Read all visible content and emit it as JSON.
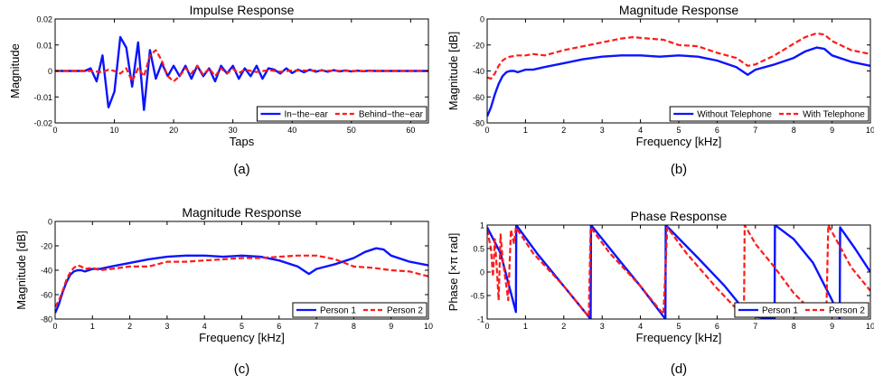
{
  "colors": {
    "series1": "#0a14ff",
    "series2": "#ff1a1a",
    "axis": "#000000",
    "background": "#ffffff"
  },
  "chart_data": [
    {
      "type": "line",
      "caption": "(a)",
      "title": "Impulse Response",
      "xlabel": "Taps",
      "ylabel": "Magnitude",
      "xlim": [
        0,
        63
      ],
      "ylim": [
        -0.02,
        0.02
      ],
      "xticks": [
        0,
        10,
        20,
        30,
        40,
        50,
        60
      ],
      "yticks": [
        -0.02,
        -0.01,
        0,
        0.01,
        0.02
      ],
      "xtick_labels": [
        "0",
        "10",
        "20",
        "30",
        "40",
        "50",
        "60"
      ],
      "ytick_labels": [
        "-0.02",
        "-0.01",
        "0",
        "0.01",
        "0.02"
      ],
      "legend_position": "bottom-right",
      "series": [
        {
          "name": "In−the−ear",
          "style": "solid",
          "x": [
            0,
            1,
            2,
            3,
            4,
            5,
            6,
            7,
            8,
            9,
            10,
            11,
            12,
            13,
            14,
            15,
            16,
            17,
            18,
            19,
            20,
            21,
            22,
            23,
            24,
            25,
            26,
            27,
            28,
            29,
            30,
            31,
            32,
            33,
            34,
            35,
            36,
            37,
            38,
            39,
            40,
            41,
            42,
            43,
            44,
            45,
            46,
            47,
            48,
            49,
            50,
            51,
            52,
            53,
            54,
            55,
            56,
            57,
            58,
            59,
            60,
            61,
            62,
            63
          ],
          "y": [
            0,
            0,
            0,
            0,
            0,
            0,
            0.001,
            -0.004,
            0.006,
            -0.014,
            -0.008,
            0.013,
            0.009,
            -0.006,
            0.011,
            -0.015,
            0.008,
            -0.003,
            0.003,
            -0.002,
            0.002,
            -0.002,
            0.002,
            -0.003,
            0.002,
            -0.002,
            0.001,
            -0.004,
            0.002,
            -0.001,
            0.002,
            -0.003,
            0.001,
            -0.002,
            0.002,
            -0.003,
            0.001,
            0.0005,
            -0.001,
            0.001,
            -0.0008,
            0.0005,
            -0.0005,
            0.0005,
            -0.0003,
            0.0003,
            -0.0003,
            0.0003,
            -0.0002,
            0.0002,
            -0.0002,
            0.0001,
            -0.0001,
            0.0001,
            0,
            0,
            0,
            0,
            0,
            0,
            0,
            0,
            0,
            0
          ]
        },
        {
          "name": "Behind−the−ear",
          "style": "dashed",
          "x": [
            0,
            2,
            4,
            6,
            8,
            9,
            10,
            11,
            12,
            13,
            14,
            15,
            16,
            17,
            18,
            19,
            20,
            21,
            22,
            23,
            24,
            25,
            26,
            27,
            28,
            29,
            30,
            31,
            32,
            34,
            36,
            38,
            40,
            45,
            50,
            55,
            60,
            63
          ],
          "y": [
            0,
            0,
            0,
            0,
            -0.0005,
            0.0005,
            0,
            -0.001,
            0.001,
            -0.004,
            0.001,
            -0.002,
            0.006,
            0.008,
            0.004,
            -0.002,
            -0.004,
            -0.002,
            0.001,
            -0.001,
            0.002,
            -0.0015,
            0.001,
            -0.002,
            0.001,
            -0.001,
            0.0008,
            -0.0008,
            0.0005,
            -0.0004,
            0.0003,
            -0.0003,
            0.0002,
            0.0001,
            0,
            0,
            0,
            0
          ]
        }
      ]
    },
    {
      "type": "line",
      "caption": "(b)",
      "title": "Magnitude Response",
      "xlabel": "Frequency [kHz]",
      "ylabel": "Magnitude [dB]",
      "xlim": [
        0,
        10
      ],
      "ylim": [
        -80,
        0
      ],
      "xticks": [
        0,
        1,
        2,
        3,
        4,
        5,
        6,
        7,
        8,
        9,
        10
      ],
      "yticks": [
        -80,
        -60,
        -40,
        -20,
        0
      ],
      "xtick_labels": [
        "0",
        "1",
        "2",
        "3",
        "4",
        "5",
        "6",
        "7",
        "8",
        "9",
        "10"
      ],
      "ytick_labels": [
        "-80",
        "-60",
        "-40",
        "-20",
        "0"
      ],
      "legend_position": "bottom-right",
      "series": [
        {
          "name": "Without Telephone",
          "style": "solid",
          "x": [
            0,
            0.1,
            0.2,
            0.3,
            0.4,
            0.5,
            0.6,
            0.7,
            0.8,
            1.0,
            1.2,
            1.5,
            2.0,
            2.5,
            3.0,
            3.5,
            4.0,
            4.5,
            5.0,
            5.5,
            6.0,
            6.5,
            6.8,
            7.0,
            7.5,
            8.0,
            8.3,
            8.6,
            8.8,
            9.0,
            9.5,
            10.0
          ],
          "y": [
            -75,
            -68,
            -58,
            -50,
            -44,
            -41,
            -40,
            -40,
            -41,
            -39,
            -39,
            -37,
            -34,
            -31,
            -29,
            -28,
            -28,
            -29,
            -28,
            -29,
            -32,
            -37,
            -43,
            -39,
            -35,
            -30,
            -25,
            -22,
            -23,
            -28,
            -33,
            -36
          ]
        },
        {
          "name": "With Telephone",
          "style": "dashed",
          "x": [
            0,
            0.1,
            0.2,
            0.3,
            0.4,
            0.5,
            0.6,
            0.8,
            1.0,
            1.2,
            1.5,
            2.0,
            2.5,
            3.0,
            3.5,
            3.8,
            4.2,
            4.6,
            5.0,
            5.5,
            6.0,
            6.5,
            6.8,
            7.0,
            7.5,
            8.0,
            8.3,
            8.6,
            8.8,
            9.0,
            9.5,
            10.0
          ],
          "y": [
            -45,
            -46,
            -42,
            -36,
            -32,
            -30,
            -29,
            -28,
            -28,
            -27,
            -28,
            -24,
            -21,
            -18,
            -15,
            -14,
            -15,
            -16,
            -20,
            -21,
            -26,
            -30,
            -36,
            -35,
            -28,
            -19,
            -14,
            -11,
            -12,
            -17,
            -24,
            -27
          ]
        }
      ]
    },
    {
      "type": "line",
      "caption": "(c)",
      "title": "Magnitude Response",
      "xlabel": "Frequency [kHz]",
      "ylabel": "Magnitude [dB]",
      "xlim": [
        0,
        10
      ],
      "ylim": [
        -80,
        0
      ],
      "xticks": [
        0,
        1,
        2,
        3,
        4,
        5,
        6,
        7,
        8,
        9,
        10
      ],
      "yticks": [
        -80,
        -60,
        -40,
        -20,
        0
      ],
      "xtick_labels": [
        "0",
        "1",
        "2",
        "3",
        "4",
        "5",
        "6",
        "7",
        "8",
        "9",
        "10"
      ],
      "ytick_labels": [
        "-80",
        "-60",
        "-40",
        "-20",
        "0"
      ],
      "legend_position": "bottom-right",
      "series": [
        {
          "name": "Person 1",
          "style": "solid",
          "x": [
            0,
            0.1,
            0.2,
            0.3,
            0.4,
            0.5,
            0.6,
            0.7,
            0.8,
            1.0,
            1.2,
            1.5,
            2.0,
            2.5,
            3.0,
            3.5,
            4.0,
            4.5,
            5.0,
            5.5,
            6.0,
            6.5,
            6.8,
            7.0,
            7.5,
            8.0,
            8.3,
            8.6,
            8.8,
            9.0,
            9.5,
            10.0
          ],
          "y": [
            -75,
            -68,
            -58,
            -50,
            -44,
            -41,
            -40,
            -40,
            -41,
            -39,
            -39,
            -37,
            -34,
            -31,
            -29,
            -28,
            -28,
            -29,
            -28,
            -29,
            -32,
            -37,
            -43,
            -39,
            -35,
            -30,
            -25,
            -22,
            -23,
            -28,
            -33,
            -36
          ]
        },
        {
          "name": "Person 2",
          "style": "dashed",
          "x": [
            0,
            0.1,
            0.2,
            0.3,
            0.4,
            0.5,
            0.6,
            0.7,
            0.8,
            1.0,
            1.2,
            1.5,
            2.0,
            2.5,
            3.0,
            3.5,
            4.0,
            4.5,
            5.0,
            5.5,
            6.0,
            6.5,
            7.0,
            7.5,
            8.0,
            8.5,
            9.0,
            9.5,
            10.0
          ],
          "y": [
            -70,
            -65,
            -57,
            -48,
            -42,
            -38,
            -36,
            -37,
            -39,
            -38,
            -40,
            -39,
            -37,
            -37,
            -33,
            -33,
            -32,
            -31,
            -30,
            -30,
            -29,
            -28,
            -28,
            -31,
            -37,
            -38,
            -40,
            -41,
            -45
          ]
        }
      ]
    },
    {
      "type": "line",
      "caption": "(d)",
      "title": "Phase Response",
      "xlabel": "Frequency [kHz]",
      "ylabel": "Phase [×π rad]",
      "xlim": [
        0,
        10
      ],
      "ylim": [
        -1,
        1
      ],
      "xticks": [
        0,
        1,
        2,
        3,
        4,
        5,
        6,
        7,
        8,
        9,
        10
      ],
      "yticks": [
        -1,
        -0.5,
        0,
        0.5,
        1
      ],
      "xtick_labels": [
        "0",
        "1",
        "2",
        "3",
        "4",
        "5",
        "6",
        "7",
        "8",
        "9",
        "10"
      ],
      "ytick_labels": [
        "-1",
        "-0.5",
        "0",
        "0.5",
        "1"
      ],
      "legend_position": "bottom-right",
      "series": [
        {
          "name": "Person 1",
          "style": "solid",
          "x": [
            0,
            0.35,
            0.75,
            0.76,
            1.3,
            2.0,
            2.7,
            2.71,
            3.5,
            4.0,
            4.65,
            4.66,
            5.5,
            6.2,
            6.8,
            7.0,
            7.5,
            7.51,
            8.0,
            8.5,
            9.0,
            9.2,
            9.21,
            9.6,
            10.0
          ],
          "y": [
            0.95,
            0.4,
            -0.85,
            1,
            0.4,
            -0.3,
            -1,
            1,
            0.2,
            -0.3,
            -1,
            1,
            0.3,
            -0.3,
            -0.9,
            -0.95,
            -1,
            1,
            0.7,
            0.2,
            -0.6,
            -1,
            0.95,
            0.5,
            0
          ]
        },
        {
          "name": "Person 2",
          "style": "dashed",
          "x": [
            0,
            0.1,
            0.15,
            0.2,
            0.25,
            0.3,
            0.35,
            0.4,
            0.5,
            0.55,
            0.62,
            0.7,
            0.75,
            1.2,
            2.0,
            2.65,
            2.7,
            3.2,
            4.0,
            4.6,
            4.7,
            5.2,
            6.0,
            6.7,
            6.72,
            7.0,
            7.5,
            8.0,
            8.5,
            8.85,
            8.9,
            9.5,
            10.0
          ],
          "y": [
            0.9,
            0.5,
            -0.1,
            0.7,
            0.1,
            -0.6,
            0.8,
            0.3,
            -0.3,
            -0.6,
            0.9,
            0.6,
            0.95,
            0.4,
            -0.3,
            -0.95,
            0.95,
            0.4,
            -0.3,
            -0.9,
            0.95,
            0.4,
            -0.35,
            -0.95,
            1,
            0.6,
            0.1,
            -0.45,
            -0.85,
            -0.95,
            1,
            0.1,
            -0.4
          ]
        }
      ]
    }
  ]
}
